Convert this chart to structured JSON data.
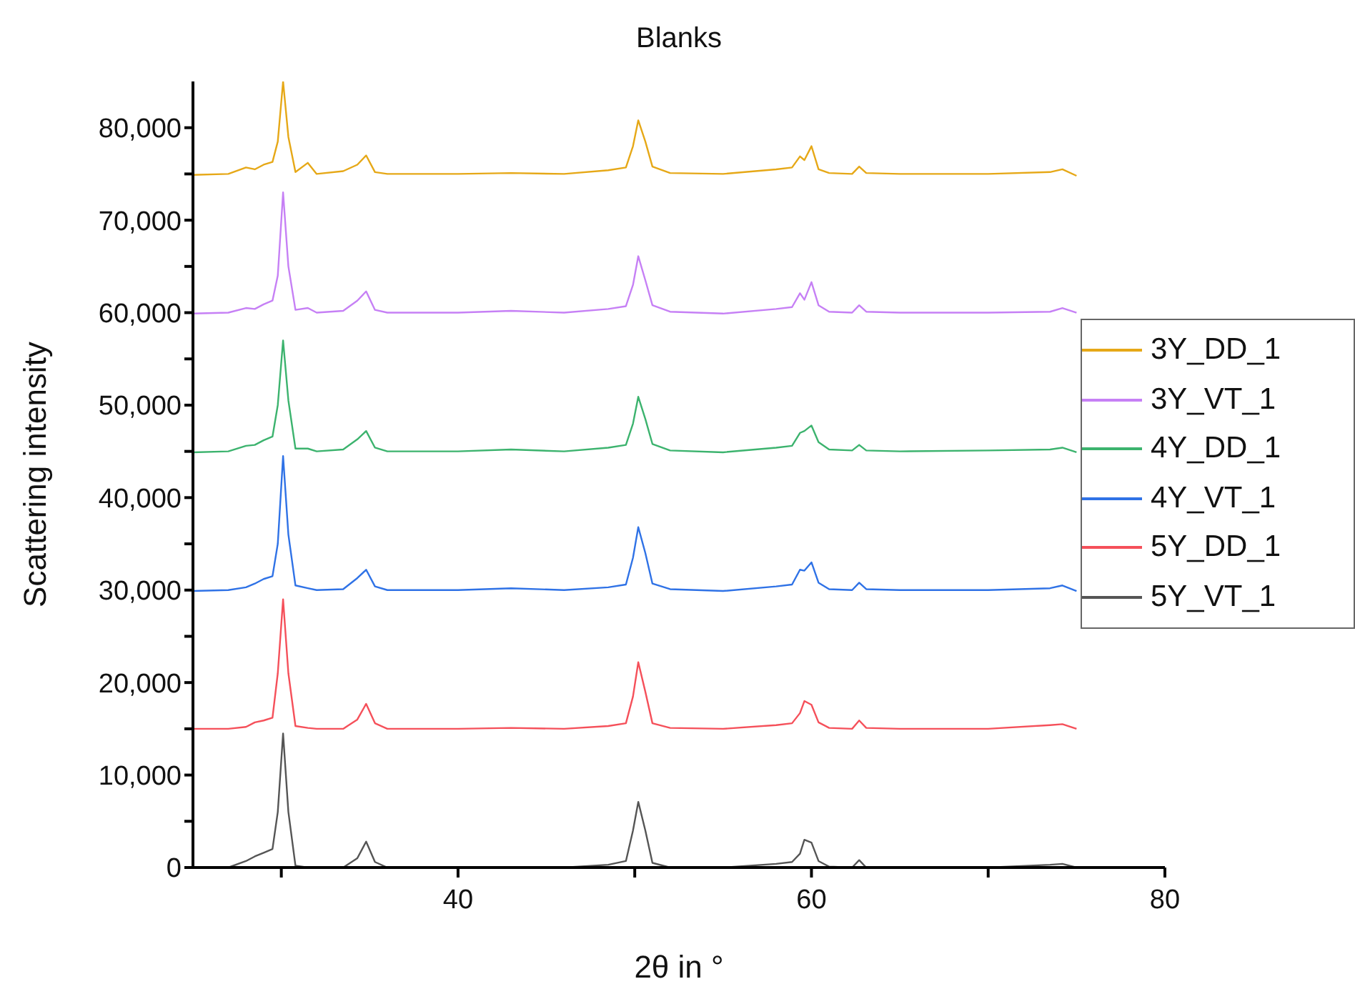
{
  "chart_data": {
    "type": "line",
    "title": "Blanks",
    "xlabel": "2θ in °",
    "ylabel": "Scattering intensity",
    "x": [
      25,
      27,
      28,
      28.5,
      29,
      29.5,
      29.8,
      30.1,
      30.4,
      30.8,
      31.5,
      32,
      33.5,
      34.3,
      34.8,
      35.3,
      36,
      40,
      43,
      46,
      48.5,
      49.5,
      49.9,
      50.2,
      50.6,
      51,
      52,
      55,
      58,
      58.9,
      59.35,
      59.6,
      60,
      60.4,
      61,
      62.3,
      62.7,
      63.1,
      65,
      70,
      73.5,
      74.2,
      75
    ],
    "series": [
      {
        "name": "3Y_DD_1",
        "color": "#e6a817",
        "values": [
          74900,
          75000,
          75700,
          75500,
          76000,
          76300,
          78500,
          85000,
          79000,
          75200,
          76200,
          75000,
          75300,
          76000,
          77000,
          75200,
          75000,
          75000,
          75100,
          75000,
          75400,
          75700,
          78000,
          80800,
          78500,
          75800,
          75100,
          75000,
          75500,
          75700,
          76900,
          76500,
          78000,
          75500,
          75100,
          75000,
          75800,
          75100,
          75000,
          75000,
          75200,
          75500,
          74800
        ]
      },
      {
        "name": "3Y_VT_1",
        "color": "#c680f5",
        "values": [
          59900,
          60000,
          60500,
          60400,
          60900,
          61300,
          64000,
          73000,
          65000,
          60300,
          60500,
          60000,
          60200,
          61300,
          62300,
          60300,
          60000,
          60000,
          60200,
          60000,
          60400,
          60700,
          63000,
          66100,
          63500,
          60800,
          60100,
          59900,
          60400,
          60600,
          62100,
          61400,
          63300,
          60800,
          60100,
          60000,
          60800,
          60100,
          60000,
          60000,
          60100,
          60500,
          60000
        ]
      },
      {
        "name": "4Y_DD_1",
        "color": "#3cb36e",
        "values": [
          44900,
          45000,
          45600,
          45700,
          46200,
          46600,
          50000,
          57000,
          50500,
          45300,
          45300,
          45000,
          45200,
          46300,
          47200,
          45400,
          45000,
          45000,
          45200,
          45000,
          45400,
          45700,
          48000,
          50900,
          48500,
          45800,
          45100,
          44900,
          45400,
          45600,
          47000,
          47200,
          47800,
          46000,
          45200,
          45100,
          45700,
          45100,
          45000,
          45100,
          45200,
          45400,
          44900
        ]
      },
      {
        "name": "4Y_VT_1",
        "color": "#2f72e6",
        "values": [
          29900,
          30000,
          30300,
          30700,
          31200,
          31500,
          35000,
          44500,
          36000,
          30500,
          30200,
          30000,
          30100,
          31300,
          32200,
          30400,
          30000,
          30000,
          30200,
          30000,
          30300,
          30600,
          33500,
          36800,
          34000,
          30700,
          30100,
          29900,
          30400,
          30600,
          32200,
          32100,
          33000,
          30800,
          30100,
          30000,
          30800,
          30100,
          30000,
          30000,
          30200,
          30500,
          29900
        ]
      },
      {
        "name": "5Y_DD_1",
        "color": "#f5505a",
        "values": [
          15000,
          15000,
          15200,
          15700,
          15900,
          16200,
          21000,
          29000,
          21000,
          15300,
          15100,
          15000,
          15000,
          16000,
          17700,
          15600,
          15000,
          15000,
          15100,
          15000,
          15300,
          15600,
          18500,
          22200,
          19000,
          15600,
          15100,
          15000,
          15400,
          15600,
          16700,
          18000,
          17600,
          15700,
          15100,
          15000,
          15900,
          15100,
          15000,
          15000,
          15400,
          15500,
          15000
        ]
      },
      {
        "name": "5Y_VT_1",
        "color": "#555555",
        "values": [
          0,
          0,
          700,
          1200,
          1600,
          2000,
          6000,
          14500,
          6000,
          200,
          0,
          0,
          0,
          1000,
          2800,
          600,
          0,
          0,
          0,
          0,
          300,
          700,
          4000,
          7100,
          4000,
          500,
          0,
          0,
          400,
          600,
          1500,
          3000,
          2700,
          700,
          100,
          0,
          800,
          0,
          0,
          0,
          300,
          400,
          0
        ]
      }
    ],
    "xlim": [
      25,
      80
    ],
    "xticks": [
      {
        "value": 30,
        "label": null
      },
      40,
      {
        "value": 50,
        "label": null
      },
      60,
      {
        "value": 70,
        "label": null
      },
      80
    ],
    "ylim": [
      0,
      85000
    ],
    "yticks": [
      0,
      {
        "value": 5000,
        "label": null
      },
      {
        "value": 10000,
        "label": "10,000"
      },
      {
        "value": 15000,
        "label": null
      },
      {
        "value": 20000,
        "label": "20,000"
      },
      {
        "value": 25000,
        "label": null
      },
      {
        "value": 30000,
        "label": "30,000"
      },
      {
        "value": 35000,
        "label": null
      },
      {
        "value": 40000,
        "label": "40,000"
      },
      {
        "value": 45000,
        "label": null
      },
      {
        "value": 50000,
        "label": "50,000"
      },
      {
        "value": 55000,
        "label": null
      },
      {
        "value": 60000,
        "label": "60,000"
      },
      {
        "value": 65000,
        "label": null
      },
      {
        "value": 70000,
        "label": "70,000"
      },
      {
        "value": 75000,
        "label": null
      },
      {
        "value": 80000,
        "label": "80,000"
      }
    ],
    "grid": false,
    "legend": "right",
    "marker": "none",
    "line_style": "solid"
  }
}
